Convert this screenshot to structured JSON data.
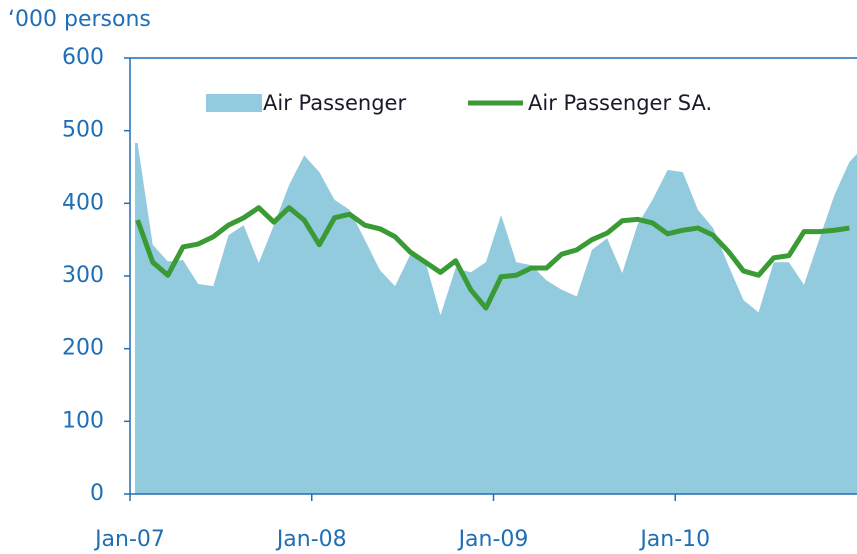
{
  "chart_data": {
    "type": "area-line",
    "ylabel": "‘000 persons",
    "categories": [
      "Jan-07",
      null,
      null,
      null,
      null,
      null,
      null,
      null,
      null,
      null,
      null,
      null,
      "Jan-08",
      null,
      null,
      null,
      null,
      null,
      null,
      null,
      null,
      null,
      null,
      null,
      "Jan-09",
      null,
      null,
      null,
      null,
      null,
      null,
      null,
      null,
      null,
      null,
      null,
      "Jan-10",
      null,
      null,
      null,
      null,
      null,
      null,
      null,
      null,
      null,
      null,
      null
    ],
    "series": [
      {
        "name": "Air Passenger",
        "kind": "area",
        "color": "#92cbdd",
        "values": [
          483,
          343,
          320,
          322,
          289,
          286,
          356,
          370,
          318,
          370,
          425,
          466,
          443,
          405,
          391,
          350,
          308,
          286,
          329,
          320,
          246,
          311,
          305,
          319,
          384,
          319,
          315,
          294,
          281,
          272,
          336,
          352,
          304,
          370,
          405,
          446,
          443,
          391,
          366,
          315,
          267,
          250,
          319,
          319,
          288,
          350,
          411,
          457
        ]
      },
      {
        "name": "Air Passenger SA.",
        "kind": "line",
        "color": "#3a9a35",
        "values": [
          377,
          319,
          301,
          340,
          344,
          354,
          370,
          380,
          394,
          374,
          394,
          377,
          343,
          380,
          385,
          370,
          365,
          354,
          333,
          319,
          305,
          321,
          281,
          256,
          299,
          301,
          311,
          311,
          330,
          336,
          350,
          359,
          376,
          378,
          373,
          358,
          363,
          366,
          356,
          334,
          307,
          301,
          325,
          328,
          361,
          361,
          363,
          366
        ]
      }
    ],
    "ylim": [
      0,
      600
    ],
    "yticks": [
      0,
      100,
      200,
      300,
      400,
      500,
      600
    ]
  }
}
